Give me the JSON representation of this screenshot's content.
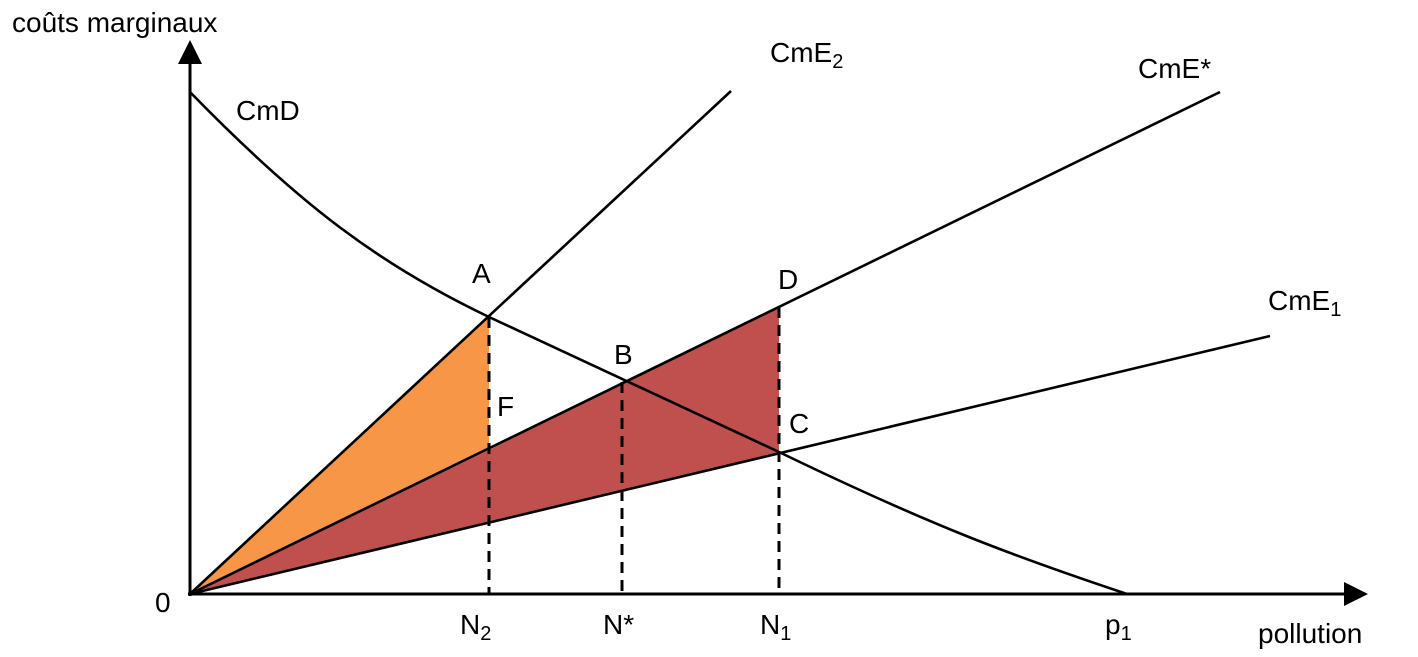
{
  "axes": {
    "y_label": "coûts marginaux",
    "x_label": "pollution",
    "origin_label": "0"
  },
  "curves": {
    "cmd": "CmD",
    "cme2": "CmE",
    "cme2_sub": "2",
    "cme_star": "CmE*",
    "cme1": "CmE",
    "cme1_sub": "1"
  },
  "points": {
    "a": "A",
    "b": "B",
    "c": "C",
    "d": "D",
    "f": "F"
  },
  "x_ticks": {
    "n2": "N",
    "n2_sub": "2",
    "n_star": "N*",
    "n1": "N",
    "n1_sub": "1",
    "p1": "p",
    "p1_sub": "1"
  },
  "colors": {
    "orange_region": "#f79646",
    "red_region": "#c0504d",
    "line": "#000000"
  }
}
